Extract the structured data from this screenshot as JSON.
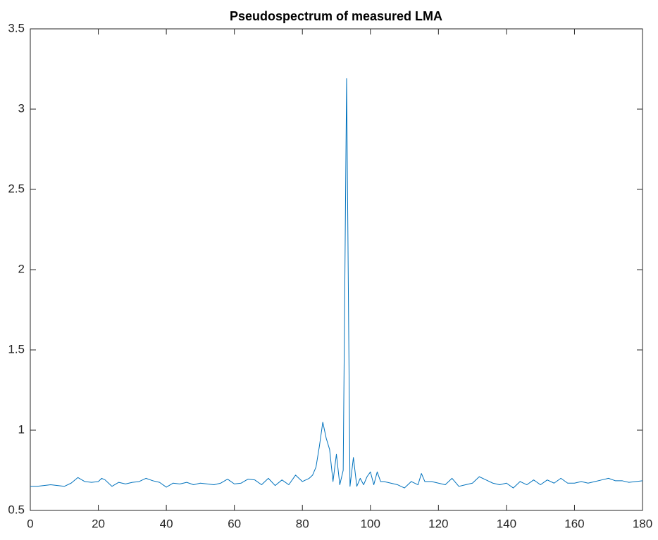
{
  "chart_data": {
    "type": "line",
    "title": "Pseudospectrum of measured LMA",
    "x": [
      0,
      2,
      4,
      6,
      8,
      10,
      12,
      14,
      16,
      18,
      20,
      21,
      22,
      24,
      26,
      28,
      30,
      32,
      34,
      36,
      38,
      40,
      42,
      44,
      46,
      48,
      50,
      52,
      54,
      56,
      58,
      60,
      62,
      64,
      66,
      68,
      70,
      72,
      74,
      76,
      78,
      80,
      82,
      83,
      84,
      85,
      86,
      87,
      88,
      89,
      90,
      91,
      92,
      93,
      94,
      95,
      96,
      97,
      98,
      99,
      100,
      101,
      102,
      103,
      104,
      106,
      108,
      110,
      112,
      114,
      115,
      116,
      118,
      120,
      122,
      124,
      126,
      128,
      130,
      132,
      134,
      136,
      138,
      140,
      142,
      144,
      146,
      148,
      150,
      152,
      154,
      156,
      158,
      160,
      162,
      164,
      166,
      168,
      170,
      172,
      174,
      176,
      178,
      180
    ],
    "series": [
      {
        "name": "Pseudospectrum",
        "color": "#0072bd",
        "values": [
          0.65,
          0.65,
          0.655,
          0.66,
          0.655,
          0.65,
          0.67,
          0.705,
          0.68,
          0.675,
          0.68,
          0.7,
          0.69,
          0.65,
          0.675,
          0.665,
          0.675,
          0.68,
          0.7,
          0.685,
          0.675,
          0.645,
          0.67,
          0.665,
          0.675,
          0.66,
          0.67,
          0.665,
          0.66,
          0.67,
          0.695,
          0.665,
          0.67,
          0.695,
          0.69,
          0.66,
          0.7,
          0.655,
          0.69,
          0.66,
          0.72,
          0.68,
          0.7,
          0.72,
          0.77,
          0.9,
          1.05,
          0.95,
          0.88,
          0.68,
          0.85,
          0.66,
          0.75,
          3.19,
          0.65,
          0.83,
          0.65,
          0.7,
          0.66,
          0.71,
          0.74,
          0.66,
          0.74,
          0.68,
          0.68,
          0.67,
          0.66,
          0.64,
          0.68,
          0.66,
          0.73,
          0.68,
          0.68,
          0.67,
          0.66,
          0.7,
          0.65,
          0.66,
          0.67,
          0.71,
          0.69,
          0.67,
          0.66,
          0.67,
          0.64,
          0.68,
          0.66,
          0.69,
          0.66,
          0.69,
          0.67,
          0.7,
          0.67,
          0.67,
          0.68,
          0.67,
          0.68,
          0.69,
          0.7,
          0.685,
          0.685,
          0.675,
          0.68,
          0.685
        ]
      }
    ],
    "xlim": [
      0,
      180
    ],
    "xticks": [
      0,
      20,
      40,
      60,
      80,
      100,
      120,
      140,
      160,
      180
    ],
    "ylim": [
      0.5,
      3.5
    ],
    "yticks": [
      0.5,
      1,
      1.5,
      2,
      2.5,
      3,
      3.5
    ],
    "box": true
  }
}
